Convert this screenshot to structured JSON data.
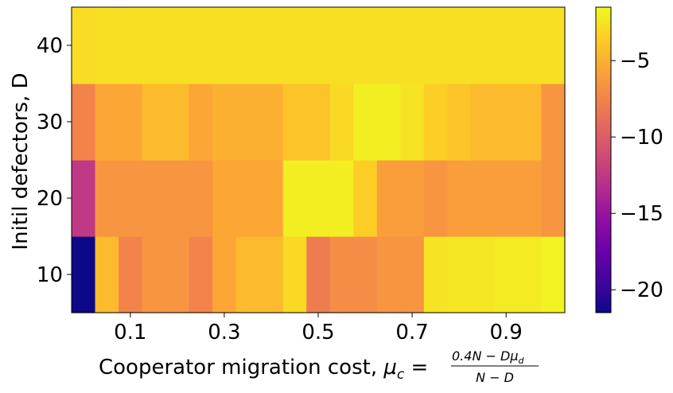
{
  "chart_data": {
    "type": "heatmap",
    "xlabel": {
      "text": "Cooperator migration cost, ",
      "mu": "μ",
      "sub": "c",
      "eq": " = ",
      "numerator": "0.4N − Dμ",
      "num_sub": "d",
      "denominator": "N − D"
    },
    "ylabel": "Initil defectors, D",
    "x_ticks": [
      "0.1",
      "0.3",
      "0.5",
      "0.7",
      "0.9"
    ],
    "x_tick_values": [
      0.1,
      0.3,
      0.5,
      0.7,
      0.9
    ],
    "xlim": [
      -0.025,
      1.025
    ],
    "x_cells": [
      0.0,
      0.05,
      0.1,
      0.15,
      0.2,
      0.25,
      0.3,
      0.35,
      0.4,
      0.45,
      0.5,
      0.55,
      0.6,
      0.65,
      0.7,
      0.75,
      0.8,
      0.85,
      0.9,
      0.95,
      1.0
    ],
    "y_ticks": [
      "10",
      "20",
      "30",
      "40"
    ],
    "y_tick_values": [
      10,
      20,
      30,
      40
    ],
    "ylim": [
      5,
      45
    ],
    "y_cells": [
      10,
      20,
      30,
      40
    ],
    "values": [
      [
        -21.5,
        -4.5,
        -7.5,
        -6.5,
        -6.5,
        -7.5,
        -5.5,
        -4.5,
        -4.5,
        -3.0,
        -8.0,
        -7.0,
        -7.0,
        -6.5,
        -6.5,
        -2.5,
        -2.3,
        -2.3,
        -2.1,
        -2.1,
        -1.8
      ],
      [
        -12.5,
        -6.5,
        -6.5,
        -6.5,
        -6.5,
        -6.5,
        -5.5,
        -5.5,
        -5.5,
        -2.0,
        -2.0,
        -2.0,
        -3.5,
        -6.0,
        -6.0,
        -6.5,
        -6.0,
        -6.0,
        -6.0,
        -6.0,
        -6.5
      ],
      [
        -7.5,
        -5.5,
        -5.5,
        -4.5,
        -4.5,
        -5.5,
        -5.0,
        -5.0,
        -5.0,
        -4.0,
        -4.0,
        -3.0,
        -2.0,
        -2.0,
        -2.5,
        -3.5,
        -4.0,
        -4.5,
        -4.5,
        -4.5,
        -6.5
      ],
      [
        -2.8,
        -2.7,
        -2.7,
        -2.7,
        -2.7,
        -2.7,
        -2.7,
        -2.7,
        -2.7,
        -2.7,
        -2.7,
        -2.7,
        -2.7,
        -2.7,
        -2.7,
        -2.7,
        -2.7,
        -2.7,
        -2.7,
        -2.7,
        -2.7
      ]
    ],
    "colorbar": {
      "colormap": "plasma",
      "vmin": -21.5,
      "vmax": -1.5,
      "ticks": [
        "−5",
        "−10",
        "−15",
        "−20"
      ],
      "tick_values": [
        -5,
        -10,
        -15,
        -20
      ]
    }
  }
}
